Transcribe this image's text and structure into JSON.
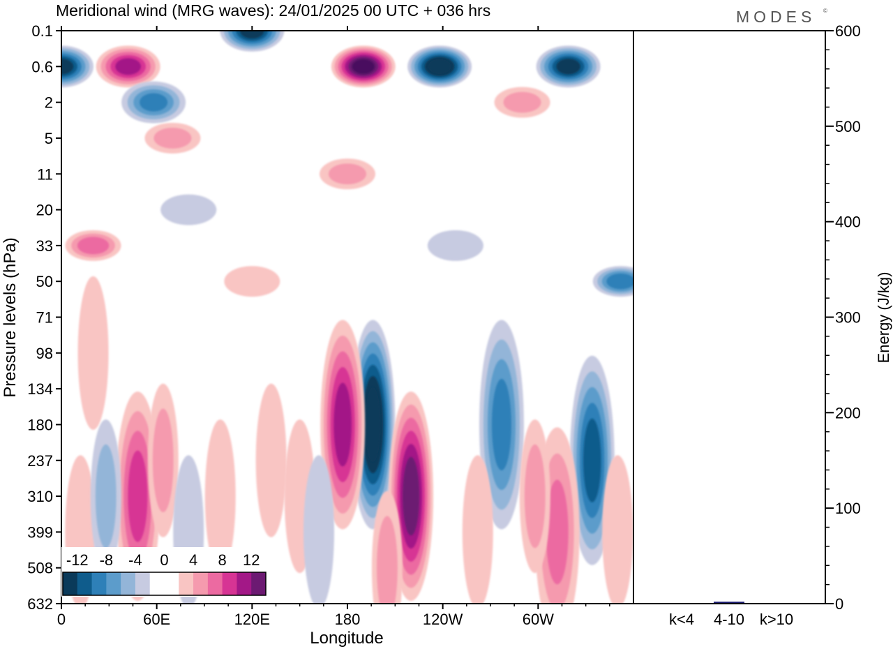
{
  "title": "Meridional wind (MRG waves):  24/01/2025  00 UTC  + 036 hrs",
  "brand": "MODES",
  "brand_mark": "©",
  "chart_data": [
    {
      "type": "heatmap",
      "title": "Meridional wind (MRG waves):  24/01/2025  00 UTC  + 036 hrs",
      "xlabel": "Longitude",
      "ylabel": "Pressure levels (hPa)",
      "x_ticks": [
        "0",
        "60E",
        "120E",
        "180",
        "120W",
        "60W"
      ],
      "x_tick_values": [
        0,
        60,
        120,
        180,
        240,
        300
      ],
      "xlim": [
        0,
        360
      ],
      "y_ticks": [
        "0.1",
        "0.6",
        "2",
        "5",
        "11",
        "20",
        "33",
        "50",
        "71",
        "98",
        "134",
        "180",
        "237",
        "310",
        "399",
        "508",
        "632"
      ],
      "levels": [
        -14,
        -12,
        -10,
        -8,
        -6,
        -4,
        -2,
        2,
        4,
        6,
        8,
        10,
        12,
        14
      ],
      "colorbar_labels": [
        "-12",
        "-8",
        "-4",
        "0",
        "4",
        "8",
        "12"
      ],
      "colorbar_label_values": [
        -12,
        -8,
        -4,
        0,
        4,
        8,
        12
      ],
      "negative_colors": [
        "#0a3a5a",
        "#0f5c8c",
        "#2e80b8",
        "#5c9ccb",
        "#93b5d8",
        "#c7cbe1"
      ],
      "positive_colors": [
        "#f9c5c3",
        "#f59aae",
        "#ec6aa1",
        "#d73494",
        "#a31887",
        "#6c1a72",
        "#4a0a5e"
      ],
      "features": [
        {
          "lon": 196,
          "level": "180",
          "value": -14
        },
        {
          "lon": 220,
          "level": "310",
          "value": 12
        },
        {
          "lon": 177,
          "level": "180",
          "value": 10
        },
        {
          "lon": 277,
          "level": "180",
          "value": -8
        },
        {
          "lon": 334,
          "level": "237",
          "value": -10
        },
        {
          "lon": 238,
          "level": "0.6",
          "value": -14
        },
        {
          "lon": 190,
          "level": "0.6",
          "value": 14
        },
        {
          "lon": 42,
          "level": "0.6",
          "value": 10
        },
        {
          "lon": 319,
          "level": "0.6",
          "value": -12
        },
        {
          "lon": 58,
          "level": "2",
          "value": -8
        },
        {
          "lon": 120,
          "level": "0.1",
          "value": -12
        },
        {
          "lon": 0,
          "level": "0.6",
          "value": -12
        },
        {
          "lon": 48,
          "level": "310",
          "value": 8
        },
        {
          "lon": 312,
          "level": "399",
          "value": 6
        }
      ]
    },
    {
      "type": "bar",
      "ylabel": "Energy (J/kg)",
      "categories": [
        "k<4",
        "4-10",
        "k>10"
      ],
      "values": [
        0.5,
        2,
        0.5
      ],
      "ylim": [
        0,
        600
      ],
      "y_ticks": [
        "0",
        "100",
        "200",
        "300",
        "400",
        "500",
        "600"
      ],
      "bar_color": "#1a1a6e"
    }
  ]
}
